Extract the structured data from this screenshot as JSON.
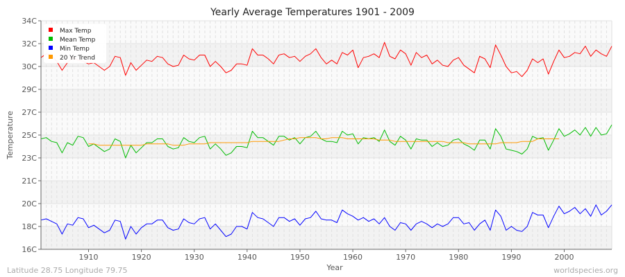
{
  "chart_data": {
    "type": "line",
    "title": "Yearly Average Temperatures 1901 - 2009",
    "xlabel": "Year",
    "ylabel": "Temperature",
    "xlim": [
      1901,
      2009
    ],
    "ylim": [
      16,
      34
    ],
    "x_ticks": [
      1910,
      1920,
      1930,
      1940,
      1950,
      1960,
      1970,
      1980,
      1990,
      2000
    ],
    "y_ticks": [
      {
        "value": 16,
        "label": "16C"
      },
      {
        "value": 17.8,
        "label": "18C"
      },
      {
        "value": 19.6,
        "label": "20C"
      },
      {
        "value": 21.4,
        "label": "21C"
      },
      {
        "value": 23.2,
        "label": "23C"
      },
      {
        "value": 25,
        "label": "25C"
      },
      {
        "value": 26.8,
        "label": "27C"
      },
      {
        "value": 28.6,
        "label": "29C"
      },
      {
        "value": 30.4,
        "label": "30C"
      },
      {
        "value": 32.2,
        "label": "32C"
      },
      {
        "value": 34,
        "label": "34C"
      }
    ],
    "grid": true,
    "legend_position": "top-left",
    "x_start": 1901,
    "series": [
      {
        "name": "Max Temp",
        "color": "#ff0000",
        "values": [
          31.1,
          31.4,
          31.3,
          30.8,
          30.1,
          30.7,
          31.1,
          30.9,
          30.8,
          30.6,
          30.7,
          30.4,
          30.1,
          30.4,
          31.2,
          31.1,
          29.7,
          30.7,
          30.1,
          30.5,
          30.9,
          30.8,
          31.2,
          31.1,
          30.6,
          30.4,
          30.5,
          31.3,
          31.0,
          30.9,
          31.3,
          31.3,
          30.4,
          30.8,
          30.4,
          29.9,
          30.1,
          30.6,
          30.6,
          30.5,
          31.8,
          31.3,
          31.3,
          31.0,
          30.6,
          31.3,
          31.4,
          31.1,
          31.2,
          30.8,
          31.2,
          31.4,
          31.8,
          31.1,
          30.6,
          30.9,
          30.6,
          31.5,
          31.3,
          31.7,
          30.3,
          31.1,
          31.2,
          31.4,
          31.1,
          32.3,
          31.2,
          31.0,
          31.7,
          31.4,
          30.5,
          31.5,
          31.1,
          31.3,
          30.6,
          30.9,
          30.5,
          30.4,
          30.9,
          31.1,
          30.5,
          30.2,
          29.9,
          31.2,
          31.0,
          30.3,
          32.1,
          31.3,
          30.4,
          29.9,
          30.0,
          29.6,
          30.1,
          31.0,
          30.7,
          31.0,
          29.8,
          30.8,
          31.7,
          31.1,
          31.2,
          31.5,
          31.4,
          32.0,
          31.2,
          31.7,
          31.4,
          31.2,
          32.0
        ]
      },
      {
        "name": "Mean Temp",
        "color": "#00bb00",
        "values": [
          24.7,
          24.8,
          24.5,
          24.4,
          23.6,
          24.4,
          24.2,
          24.9,
          24.8,
          24.1,
          24.3,
          24.0,
          23.7,
          23.9,
          24.7,
          24.5,
          23.2,
          24.2,
          23.6,
          24.0,
          24.4,
          24.4,
          24.7,
          24.7,
          24.1,
          23.9,
          24.0,
          24.8,
          24.5,
          24.4,
          24.8,
          24.9,
          23.9,
          24.3,
          23.9,
          23.4,
          23.6,
          24.1,
          24.1,
          24.0,
          25.3,
          24.8,
          24.8,
          24.5,
          24.2,
          24.9,
          24.9,
          24.6,
          24.8,
          24.3,
          24.8,
          24.9,
          25.3,
          24.7,
          24.5,
          24.5,
          24.4,
          25.3,
          25.0,
          25.1,
          24.3,
          24.8,
          24.7,
          24.8,
          24.5,
          25.4,
          24.5,
          24.2,
          24.9,
          24.6,
          23.9,
          24.7,
          24.6,
          24.6,
          24.1,
          24.4,
          24.1,
          24.2,
          24.6,
          24.7,
          24.3,
          24.1,
          23.8,
          24.6,
          24.6,
          23.9,
          25.5,
          24.9,
          23.9,
          23.8,
          23.7,
          23.5,
          23.9,
          24.9,
          24.7,
          24.8,
          23.8,
          24.6,
          25.5,
          24.9,
          25.1,
          25.4,
          25.0,
          25.6,
          24.9,
          25.6,
          25.0,
          25.1,
          25.8
        ]
      },
      {
        "name": "Min Temp",
        "color": "#0000ff",
        "values": [
          18.3,
          18.4,
          18.2,
          18.0,
          17.2,
          18.0,
          17.9,
          18.5,
          18.4,
          17.7,
          17.9,
          17.6,
          17.3,
          17.5,
          18.3,
          18.2,
          16.8,
          17.8,
          17.2,
          17.7,
          18.0,
          18.0,
          18.3,
          18.3,
          17.7,
          17.5,
          17.6,
          18.4,
          18.1,
          18.0,
          18.4,
          18.5,
          17.6,
          18.0,
          17.5,
          17.0,
          17.2,
          17.8,
          17.8,
          17.6,
          18.9,
          18.5,
          18.4,
          18.1,
          17.8,
          18.5,
          18.5,
          18.2,
          18.4,
          17.9,
          18.4,
          18.5,
          19.0,
          18.4,
          18.3,
          18.3,
          18.1,
          19.1,
          18.8,
          18.6,
          18.3,
          18.5,
          18.2,
          18.4,
          18.0,
          18.5,
          17.8,
          17.5,
          18.1,
          18.0,
          17.5,
          18.0,
          18.2,
          18.0,
          17.7,
          18.0,
          17.8,
          18.0,
          18.5,
          18.5,
          18.0,
          18.1,
          17.5,
          18.0,
          18.3,
          17.5,
          19.1,
          18.6,
          17.5,
          17.8,
          17.5,
          17.4,
          17.8,
          18.9,
          18.7,
          18.7,
          17.7,
          18.6,
          19.4,
          18.8,
          19.0,
          19.3,
          18.8,
          19.2,
          18.6,
          19.5,
          18.7,
          19.0,
          19.5
        ]
      },
      {
        "name": "20 Yr Trend",
        "color": "#ff9900",
        "values": [
          null,
          null,
          null,
          null,
          null,
          null,
          null,
          null,
          null,
          24.3,
          24.3,
          24.2,
          24.2,
          24.2,
          24.2,
          24.2,
          24.2,
          24.2,
          24.2,
          24.2,
          24.3,
          24.3,
          24.3,
          24.3,
          24.3,
          24.2,
          24.2,
          24.2,
          24.3,
          24.3,
          24.3,
          24.3,
          24.4,
          24.4,
          24.4,
          24.4,
          24.4,
          24.4,
          24.4,
          24.4,
          24.5,
          24.5,
          24.5,
          24.5,
          24.5,
          24.5,
          24.6,
          24.7,
          24.7,
          24.8,
          24.8,
          24.8,
          24.8,
          24.7,
          24.7,
          24.8,
          24.8,
          24.8,
          24.7,
          24.7,
          24.7,
          24.7,
          24.7,
          24.7,
          24.6,
          24.6,
          24.6,
          24.5,
          24.5,
          24.5,
          24.5,
          24.5,
          24.5,
          24.5,
          24.5,
          24.5,
          24.5,
          24.4,
          24.4,
          24.4,
          24.4,
          24.3,
          24.3,
          24.3,
          24.3,
          24.3,
          24.3,
          24.4,
          24.4,
          24.4,
          24.4,
          24.5,
          24.5,
          24.5,
          24.7,
          24.7,
          24.7,
          24.7,
          24.7,
          null,
          null,
          null,
          null,
          null,
          null,
          null,
          null,
          null,
          null
        ]
      }
    ]
  },
  "footer": {
    "location": "Latitude 28.75 Longitude 79.75",
    "source": "worldspecies.org"
  }
}
